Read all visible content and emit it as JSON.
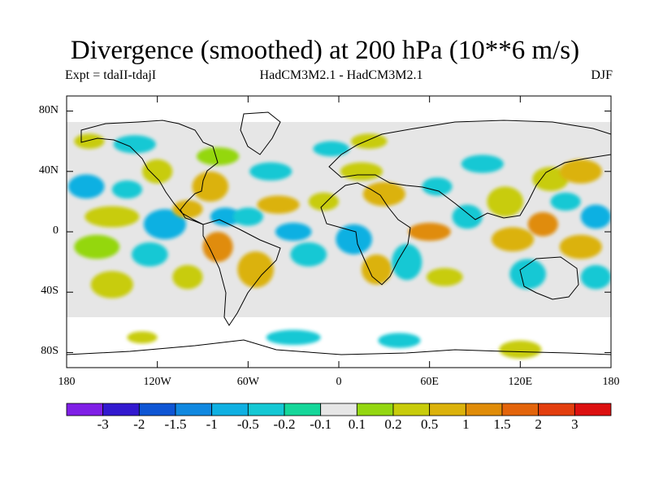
{
  "title": "Divergence (smoothed) at 200 hPa (10**6 m/s)",
  "experiment": "Expt = tdaII-tdajI",
  "model": "HadCM3M2.1 - HadCM3M2.1",
  "season": "DJF",
  "colors": {
    "land_outline": "#000000",
    "background_field": "#e6e6e6"
  },
  "chart_data": {
    "type": "heatmap",
    "title": "Divergence (smoothed) at 200 hPa (10**6 m/s)",
    "x_range": [
      -180,
      180
    ],
    "y_range": [
      -90,
      90
    ],
    "x_ticks": [
      {
        "value": -180,
        "label": "180"
      },
      {
        "value": -120,
        "label": "120W"
      },
      {
        "value": -60,
        "label": "60W"
      },
      {
        "value": 0,
        "label": "0"
      },
      {
        "value": 60,
        "label": "60E"
      },
      {
        "value": 120,
        "label": "120E"
      },
      {
        "value": 180,
        "label": "180"
      }
    ],
    "y_ticks": [
      {
        "value": 80,
        "label": "80N"
      },
      {
        "value": 40,
        "label": "40N"
      },
      {
        "value": 0,
        "label": "0"
      },
      {
        "value": -40,
        "label": "40S"
      },
      {
        "value": -80,
        "label": "80S"
      }
    ],
    "colorbar": {
      "levels": [
        "-3",
        "-2",
        "-1.5",
        "-1",
        "-0.5",
        "-0.2",
        "-0.1",
        "0.1",
        "0.2",
        "0.5",
        "1",
        "1.5",
        "2",
        "3"
      ],
      "colors": [
        "#7f1fe6",
        "#3219cf",
        "#0e55d4",
        "#1088e0",
        "#0fb0e2",
        "#14c8d4",
        "#15d79a",
        "#e6e6e6",
        "#94d711",
        "#c8cc0b",
        "#dbb20b",
        "#e08c08",
        "#e3640b",
        "#e33e0e",
        "#dc1010"
      ]
    },
    "blobs": [
      {
        "lon": -167,
        "lat": 30,
        "rlon": 12,
        "rlat": 8,
        "cls": 4
      },
      {
        "lon": -150,
        "lat": 10,
        "rlon": 18,
        "rlat": 7,
        "cls": 9
      },
      {
        "lon": -140,
        "lat": 28,
        "rlon": 10,
        "rlat": 6,
        "cls": 5
      },
      {
        "lon": -160,
        "lat": -10,
        "rlon": 15,
        "rlat": 8,
        "cls": 8
      },
      {
        "lon": -150,
        "lat": -35,
        "rlon": 14,
        "rlat": 9,
        "cls": 9
      },
      {
        "lon": -165,
        "lat": 60,
        "rlon": 10,
        "rlat": 5,
        "cls": 9
      },
      {
        "lon": -135,
        "lat": 58,
        "rlon": 14,
        "rlat": 6,
        "cls": 5
      },
      {
        "lon": -120,
        "lat": 40,
        "rlon": 10,
        "rlat": 8,
        "cls": 9
      },
      {
        "lon": -115,
        "lat": 5,
        "rlon": 14,
        "rlat": 10,
        "cls": 4
      },
      {
        "lon": -125,
        "lat": -15,
        "rlon": 12,
        "rlat": 8,
        "cls": 5
      },
      {
        "lon": -100,
        "lat": 15,
        "rlon": 10,
        "rlat": 6,
        "cls": 10
      },
      {
        "lon": -85,
        "lat": 30,
        "rlon": 12,
        "rlat": 10,
        "cls": 10
      },
      {
        "lon": -80,
        "lat": 50,
        "rlon": 14,
        "rlat": 6,
        "cls": 8
      },
      {
        "lon": -75,
        "lat": 10,
        "rlon": 10,
        "rlat": 6,
        "cls": 4
      },
      {
        "lon": -80,
        "lat": -10,
        "rlon": 10,
        "rlat": 10,
        "cls": 11
      },
      {
        "lon": -100,
        "lat": -30,
        "rlon": 10,
        "rlat": 8,
        "cls": 9
      },
      {
        "lon": -60,
        "lat": 10,
        "rlon": 10,
        "rlat": 6,
        "cls": 5
      },
      {
        "lon": -55,
        "lat": -25,
        "rlon": 12,
        "rlat": 12,
        "cls": 10
      },
      {
        "lon": -40,
        "lat": 18,
        "rlon": 14,
        "rlat": 6,
        "cls": 10
      },
      {
        "lon": -45,
        "lat": 40,
        "rlon": 14,
        "rlat": 6,
        "cls": 5
      },
      {
        "lon": -30,
        "lat": 0,
        "rlon": 12,
        "rlat": 6,
        "cls": 4
      },
      {
        "lon": -20,
        "lat": -15,
        "rlon": 12,
        "rlat": 8,
        "cls": 5
      },
      {
        "lon": -10,
        "lat": 20,
        "rlon": 10,
        "rlat": 6,
        "cls": 9
      },
      {
        "lon": 10,
        "lat": -5,
        "rlon": 12,
        "rlat": 10,
        "cls": 4
      },
      {
        "lon": 15,
        "lat": 40,
        "rlon": 14,
        "rlat": 6,
        "cls": 9
      },
      {
        "lon": 30,
        "lat": 25,
        "rlon": 14,
        "rlat": 8,
        "cls": 10
      },
      {
        "lon": 25,
        "lat": -25,
        "rlon": 10,
        "rlat": 10,
        "cls": 10
      },
      {
        "lon": 45,
        "lat": -20,
        "rlon": 10,
        "rlat": 12,
        "cls": 5
      },
      {
        "lon": 60,
        "lat": 0,
        "rlon": 14,
        "rlat": 6,
        "cls": 11
      },
      {
        "lon": 65,
        "lat": 30,
        "rlon": 10,
        "rlat": 6,
        "cls": 5
      },
      {
        "lon": 70,
        "lat": -30,
        "rlon": 12,
        "rlat": 6,
        "cls": 9
      },
      {
        "lon": 85,
        "lat": 10,
        "rlon": 10,
        "rlat": 8,
        "cls": 5
      },
      {
        "lon": 95,
        "lat": 45,
        "rlon": 14,
        "rlat": 6,
        "cls": 5
      },
      {
        "lon": 110,
        "lat": 20,
        "rlon": 12,
        "rlat": 10,
        "cls": 9
      },
      {
        "lon": 115,
        "lat": -5,
        "rlon": 14,
        "rlat": 8,
        "cls": 10
      },
      {
        "lon": 125,
        "lat": -28,
        "rlon": 12,
        "rlat": 10,
        "cls": 5
      },
      {
        "lon": 135,
        "lat": 5,
        "rlon": 10,
        "rlat": 8,
        "cls": 11
      },
      {
        "lon": 140,
        "lat": 35,
        "rlon": 12,
        "rlat": 8,
        "cls": 9
      },
      {
        "lon": 150,
        "lat": 20,
        "rlon": 10,
        "rlat": 6,
        "cls": 5
      },
      {
        "lon": 160,
        "lat": -10,
        "rlon": 14,
        "rlat": 8,
        "cls": 10
      },
      {
        "lon": 160,
        "lat": 40,
        "rlon": 14,
        "rlat": 8,
        "cls": 10
      },
      {
        "lon": 170,
        "lat": 10,
        "rlon": 10,
        "rlat": 8,
        "cls": 4
      },
      {
        "lon": 170,
        "lat": -30,
        "rlon": 10,
        "rlat": 8,
        "cls": 5
      },
      {
        "lon": -30,
        "lat": -70,
        "rlon": 18,
        "rlat": 5,
        "cls": 5
      },
      {
        "lon": 40,
        "lat": -72,
        "rlon": 14,
        "rlat": 5,
        "cls": 5
      },
      {
        "lon": 120,
        "lat": -78,
        "rlon": 14,
        "rlat": 6,
        "cls": 9
      },
      {
        "lon": -130,
        "lat": -70,
        "rlon": 10,
        "rlat": 4,
        "cls": 9
      },
      {
        "lon": 20,
        "lat": 60,
        "rlon": 12,
        "rlat": 5,
        "cls": 9
      },
      {
        "lon": -5,
        "lat": 55,
        "rlon": 12,
        "rlat": 5,
        "cls": 5
      }
    ]
  }
}
